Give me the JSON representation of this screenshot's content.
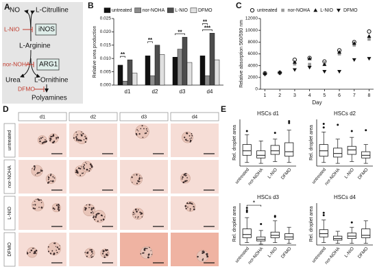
{
  "panel_labels": [
    "A",
    "B",
    "C",
    "D",
    "E"
  ],
  "diagram": {
    "nodes": [
      "NO",
      "L-Citrulline",
      "L-NIO",
      "iNOS",
      "L-Arginine",
      "nor-NOHA",
      "ARG1",
      "Urea",
      "L-Ornithine",
      "DFMO",
      "Polyamines"
    ]
  },
  "micrographs": {
    "columns": [
      "d1",
      "d2",
      "d3",
      "d4"
    ],
    "rows": [
      "untreated",
      "nor-NOHA",
      "L-NIO",
      "DFMO"
    ]
  },
  "chart_data": [
    {
      "type": "bar",
      "y_label": "Relative urea production",
      "categories": [
        "d1",
        "d2",
        "d3",
        "d4"
      ],
      "series": [
        {
          "name": "untreated",
          "color": "#111111",
          "values": [
            0.0075,
            0.011,
            0.0105,
            0.011
          ]
        },
        {
          "name": "nor-NOHA",
          "color": "#8c8c8c",
          "values": [
            0.0015,
            0.0035,
            0.0135,
            0.0035
          ]
        },
        {
          "name": "L-NIO",
          "color": "#4d4d4d",
          "values": [
            0.0095,
            0.015,
            0.018,
            0.0195
          ]
        },
        {
          "name": "DFMO",
          "color": "#e0e0e0",
          "values": [
            0.0045,
            0.0115,
            0.0085,
            0.0095
          ]
        }
      ],
      "ylim": [
        0,
        0.025
      ],
      "yticks": [
        {
          "value": 0,
          "label": "0.000"
        },
        {
          "value": 0.005,
          "label": "0.005"
        },
        {
          "value": 0.01,
          "label": "0.010"
        },
        {
          "value": 0.015,
          "label": "0.015"
        },
        {
          "value": 0.02,
          "label": "0.020"
        },
        {
          "value": 0.025,
          "label": "0.025"
        }
      ],
      "annotations": [
        {
          "text": "**",
          "category": "d1",
          "pair": [
            "untreated",
            "nor-NOHA"
          ]
        },
        {
          "text": "**",
          "category": "d2",
          "pair": [
            "untreated",
            "nor-NOHA"
          ]
        },
        {
          "text": "**",
          "category": "d3",
          "pair": [
            "untreated",
            "L-NIO"
          ]
        },
        {
          "text": "***",
          "category": "d4",
          "pair": [
            "untreated",
            "L-NIO"
          ]
        },
        {
          "text": "**",
          "category": "d4",
          "pair": [
            "untreated",
            "nor-NOHA"
          ]
        }
      ]
    },
    {
      "type": "scatter",
      "x_label": "Day",
      "y_label": "Relative absorption 560/590 nm",
      "x": [
        1,
        2,
        3,
        4,
        5,
        6,
        7,
        8
      ],
      "xlim": [
        0.7,
        8.3
      ],
      "xticks": [
        1,
        2,
        3,
        4,
        5,
        6,
        7,
        8
      ],
      "ylim": [
        0,
        12000
      ],
      "yticks": [
        0,
        2000,
        4000,
        6000,
        8000,
        10000,
        12000
      ],
      "series": [
        {
          "name": "untreated",
          "color": "#111111",
          "marker": "circle-open",
          "values": [
            2700,
            2800,
            5000,
            5300,
            4700,
            6600,
            8000,
            9800
          ]
        },
        {
          "name": "nor-NOHA",
          "color": "#999999",
          "marker": "square",
          "values": [
            2600,
            2800,
            4300,
            4200,
            4500,
            6000,
            7500,
            8500
          ]
        },
        {
          "name": "L-NIO",
          "color": "#111111",
          "marker": "triangle-up",
          "values": [
            2700,
            2900,
            4600,
            5200,
            4200,
            6300,
            7800,
            9000
          ]
        },
        {
          "name": "DFMO",
          "color": "#111111",
          "marker": "triangle-down",
          "values": [
            2500,
            2700,
            3300,
            3700,
            3000,
            3000,
            5000,
            5200
          ]
        }
      ]
    },
    {
      "type": "box",
      "title": "HSCs d1",
      "y_label": "Rel. droplet area",
      "categories": [
        "untreated",
        "nor-NOHA",
        "L-NIO",
        "DFMO"
      ],
      "ylim": [
        0,
        260
      ],
      "boxes": [
        [
          20,
          60,
          85,
          120,
          175
        ],
        [
          15,
          45,
          60,
          85,
          140
        ],
        [
          25,
          65,
          85,
          115,
          150
        ],
        [
          20,
          55,
          80,
          130,
          200
        ]
      ],
      "outliers": [
        [
          195
        ],
        [],
        [
          185
        ],
        [
          240,
          250
        ]
      ],
      "annotations": []
    },
    {
      "type": "box",
      "title": "HSCs d2",
      "y_label": "Rel. droplet area",
      "categories": [
        "untreated",
        "nor-NOHA",
        "L-NIO",
        "DFMO"
      ],
      "ylim": [
        0,
        260
      ],
      "boxes": [
        [
          20,
          55,
          85,
          120,
          190
        ],
        [
          15,
          50,
          70,
          100,
          150
        ],
        [
          25,
          65,
          90,
          110,
          160
        ],
        [
          15,
          45,
          60,
          80,
          120
        ]
      ],
      "outliers": [
        [
          235,
          215
        ],
        [
          230
        ],
        [
          195
        ],
        [
          200
        ]
      ],
      "annotations": []
    },
    {
      "type": "box",
      "title": "HSCs d3",
      "y_label": "Rel. droplet area",
      "categories": [
        "untreated",
        "nor-NOHA",
        "L-NIO",
        "DFMO"
      ],
      "ylim": [
        0,
        260
      ],
      "boxes": [
        [
          15,
          45,
          65,
          100,
          170
        ],
        [
          5,
          25,
          35,
          50,
          90
        ],
        [
          15,
          45,
          60,
          80,
          150
        ],
        [
          10,
          35,
          50,
          70,
          110
        ]
      ],
      "outliers": [
        [
          230,
          215,
          205
        ],
        [
          130
        ],
        [
          180,
          175
        ],
        []
      ],
      "annotations": [
        {
          "text": "*",
          "pair": [
            "untreated",
            "nor-NOHA"
          ]
        }
      ]
    },
    {
      "type": "box",
      "title": "HSCs d4",
      "y_label": "Rel. droplet area",
      "categories": [
        "untreated",
        "nor-NOHA",
        "L-NIO",
        "DFMO"
      ],
      "ylim": [
        0,
        260
      ],
      "boxes": [
        [
          15,
          50,
          70,
          95,
          155
        ],
        [
          10,
          30,
          40,
          55,
          85
        ],
        [
          10,
          40,
          55,
          75,
          110
        ],
        [
          10,
          45,
          60,
          100,
          150
        ]
      ],
      "outliers": [
        [
          200,
          185
        ],
        [],
        [
          140
        ],
        []
      ],
      "annotations": []
    }
  ]
}
